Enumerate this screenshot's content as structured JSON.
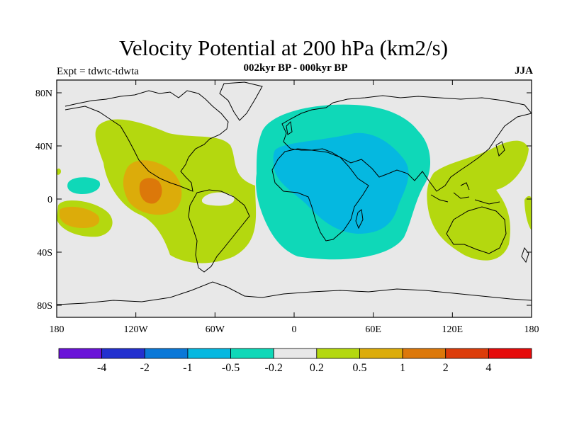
{
  "title": "Velocity Potential at 200 hPa (km2/s)",
  "subtitle": "002kyr BP - 000kyr BP",
  "experiment": "Expt = tdwtc-tdwta",
  "season": "JJA",
  "lat_ticks": [
    "80N",
    "40N",
    "0",
    "40S",
    "80S"
  ],
  "lon_ticks": [
    "180",
    "120W",
    "60W",
    "0",
    "60E",
    "120E",
    "180"
  ],
  "colorbar": {
    "labels": [
      "-4",
      "-2",
      "-1",
      "-0.5",
      "-0.2",
      "0.2",
      "0.5",
      "1",
      "2",
      "4"
    ],
    "colors": [
      "#6a13d8",
      "#2330cf",
      "#0a78d8",
      "#05b8e0",
      "#0fd8b8",
      "#e8e8e8",
      "#b4d80f",
      "#dcac0a",
      "#dc780a",
      "#dc3c0a",
      "#e60a0a"
    ]
  },
  "map_colors": {
    "background": "#e8e8e8",
    "neg_weak": "#0fd8b8",
    "neg_mid": "#05b8e0",
    "pos_weak": "#b4d80f",
    "pos_mid": "#dcac0a",
    "pos_strong": "#dc780a"
  }
}
